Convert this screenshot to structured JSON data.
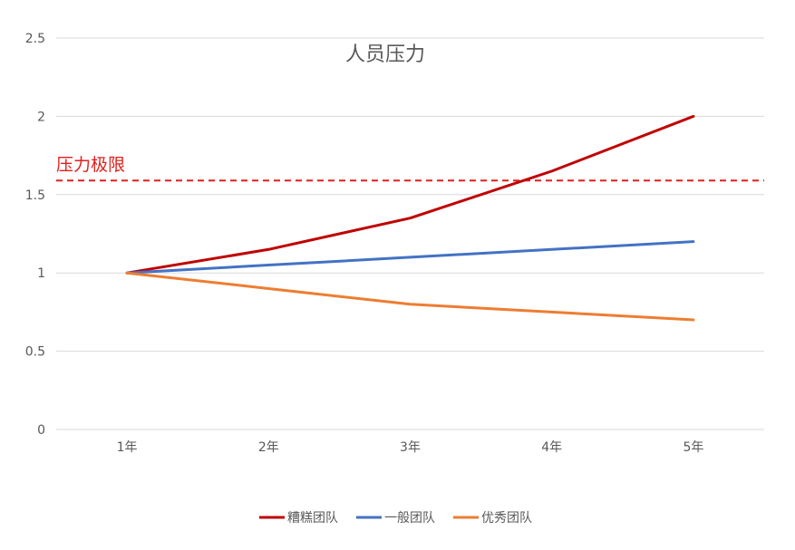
{
  "chart_data": {
    "type": "line",
    "title": "人员压力",
    "xlabel": "",
    "ylabel": "",
    "categories": [
      "1年",
      "2年",
      "3年",
      "4年",
      "5年"
    ],
    "ylim": [
      0,
      2.5
    ],
    "yticks": [
      "0",
      "0.5",
      "1",
      "1.5",
      "2",
      "2.5"
    ],
    "grid": true,
    "legend_position": "bottom",
    "series": [
      {
        "name": "糟糕团队",
        "color": "#C00000",
        "values": [
          1.0,
          1.15,
          1.35,
          1.65,
          2.0
        ]
      },
      {
        "name": "一般团队",
        "color": "#4472C4",
        "values": [
          1.0,
          1.05,
          1.1,
          1.15,
          1.2
        ]
      },
      {
        "name": "优秀团队",
        "color": "#ED7D31",
        "values": [
          1.0,
          0.9,
          0.8,
          0.75,
          0.7
        ]
      }
    ],
    "annotations": [
      {
        "label": "压力极限",
        "value": 1.59,
        "color": "#E0201B",
        "style": "dashed"
      }
    ],
    "colors": {
      "gridline": "#D9D9D9",
      "text": "#595959"
    }
  }
}
